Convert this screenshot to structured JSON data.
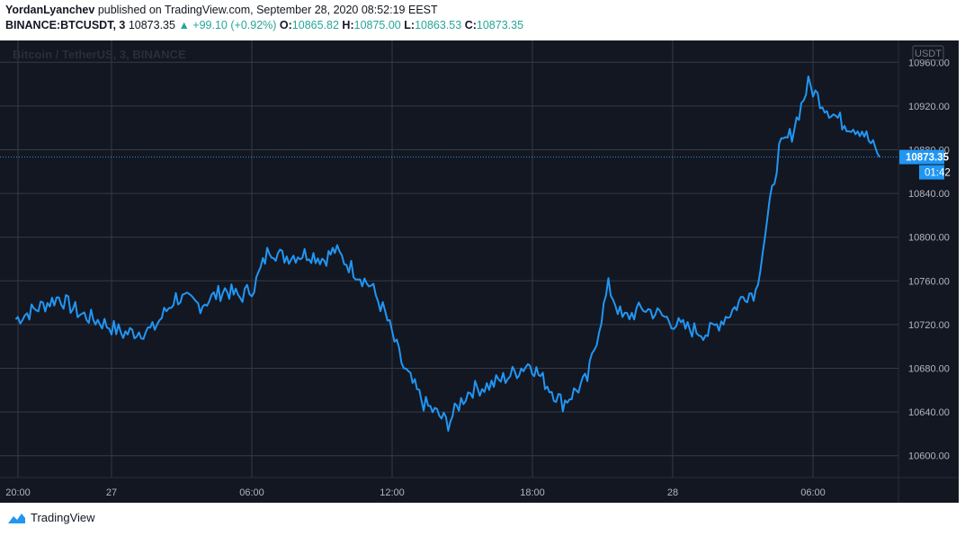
{
  "header": {
    "author": "YordanLyanchev",
    "published_text": "published on TradingView.com, September 28, 2020 08:52:19 EEST",
    "symbol": "BINANCE:BTCUSDT, 3",
    "last": "10873.35",
    "change": "▲ +99.10 (+0.92%)",
    "o_label": "O:",
    "o_value": "10865.82",
    "h_label": "H:",
    "h_value": "10875.00",
    "l_label": "L:",
    "l_value": "10863.53",
    "c_label": "C:",
    "c_value": "10873.35"
  },
  "watermark": "Bitcoin / TetherUS, 3, BINANCE",
  "currency_badge": "USDT",
  "price_label": "10873.35",
  "countdown_label": "01:42",
  "footer": {
    "brand": "TradingView"
  },
  "colors": {
    "background": "#131722",
    "line": "#2196f3",
    "grid": "#363a45",
    "up": "#26a69a"
  },
  "chart_data": {
    "type": "line",
    "series": [
      {
        "x": [
          "2020-09-26 19:54",
          "2020-09-26 21:45",
          "2020-09-26 22:39",
          "2020-09-26 23:36",
          "2020-09-27 00:30",
          "2020-09-27 01:45",
          "2020-09-27 02:45",
          "2020-09-27 03:48",
          "2020-09-27 04:51",
          "2020-09-27 05:30",
          "2020-09-27 06:06",
          "2020-09-27 06:45",
          "2020-09-27 07:18",
          "2020-09-27 08:27",
          "2020-09-27 09:06",
          "2020-09-27 09:33",
          "2020-09-27 10:21",
          "2020-09-27 11:06",
          "2020-09-27 11:42",
          "2020-09-27 12:30",
          "2020-09-27 13:21",
          "2020-09-27 14:24",
          "2020-09-27 14:57",
          "2020-09-27 15:21",
          "2020-09-27 16:15",
          "2020-09-27 17:09",
          "2020-09-27 17:54",
          "2020-09-27 18:21",
          "2020-09-27 19:18",
          "2020-09-27 20:21",
          "2020-09-27 21:15",
          "2020-09-27 21:51",
          "2020-09-27 22:45",
          "2020-09-27 23:33",
          "2020-09-28 00:21",
          "2020-09-28 01:30",
          "2020-09-28 02:39",
          "2020-09-28 03:06",
          "2020-09-28 03:33",
          "2020-09-28 04:33",
          "2020-09-28 05:06",
          "2020-09-28 05:48",
          "2020-09-28 06:30",
          "2020-09-28 07:15",
          "2020-09-28 08:06",
          "2020-09-28 08:51"
        ],
        "y": [
          10725,
          10745,
          10730,
          10722,
          10712,
          10715,
          10745,
          10738,
          10752,
          10745,
          10755,
          10790,
          10782,
          10785,
          10780,
          10788,
          10770,
          10755,
          10730,
          10680,
          10648,
          10630,
          10650,
          10660,
          10665,
          10675,
          10685,
          10672,
          10648,
          10670,
          10755,
          10725,
          10735,
          10728,
          10718,
          10712,
          10735,
          10748,
          10750,
          10880,
          10895,
          10940,
          10920,
          10905,
          10898,
          10873.35
        ]
      }
    ],
    "x_ticks": [
      "20:00",
      "27",
      "06:00",
      "12:00",
      "18:00",
      "28",
      "06:00"
    ],
    "y_ticks": [
      "10600.00",
      "10640.00",
      "10680.00",
      "10720.00",
      "10760.00",
      "10800.00",
      "10840.00",
      "10880.00",
      "10920.00",
      "10960.00"
    ],
    "ylim": [
      10580,
      10980
    ],
    "current_price": 10873.35,
    "grid": true
  }
}
